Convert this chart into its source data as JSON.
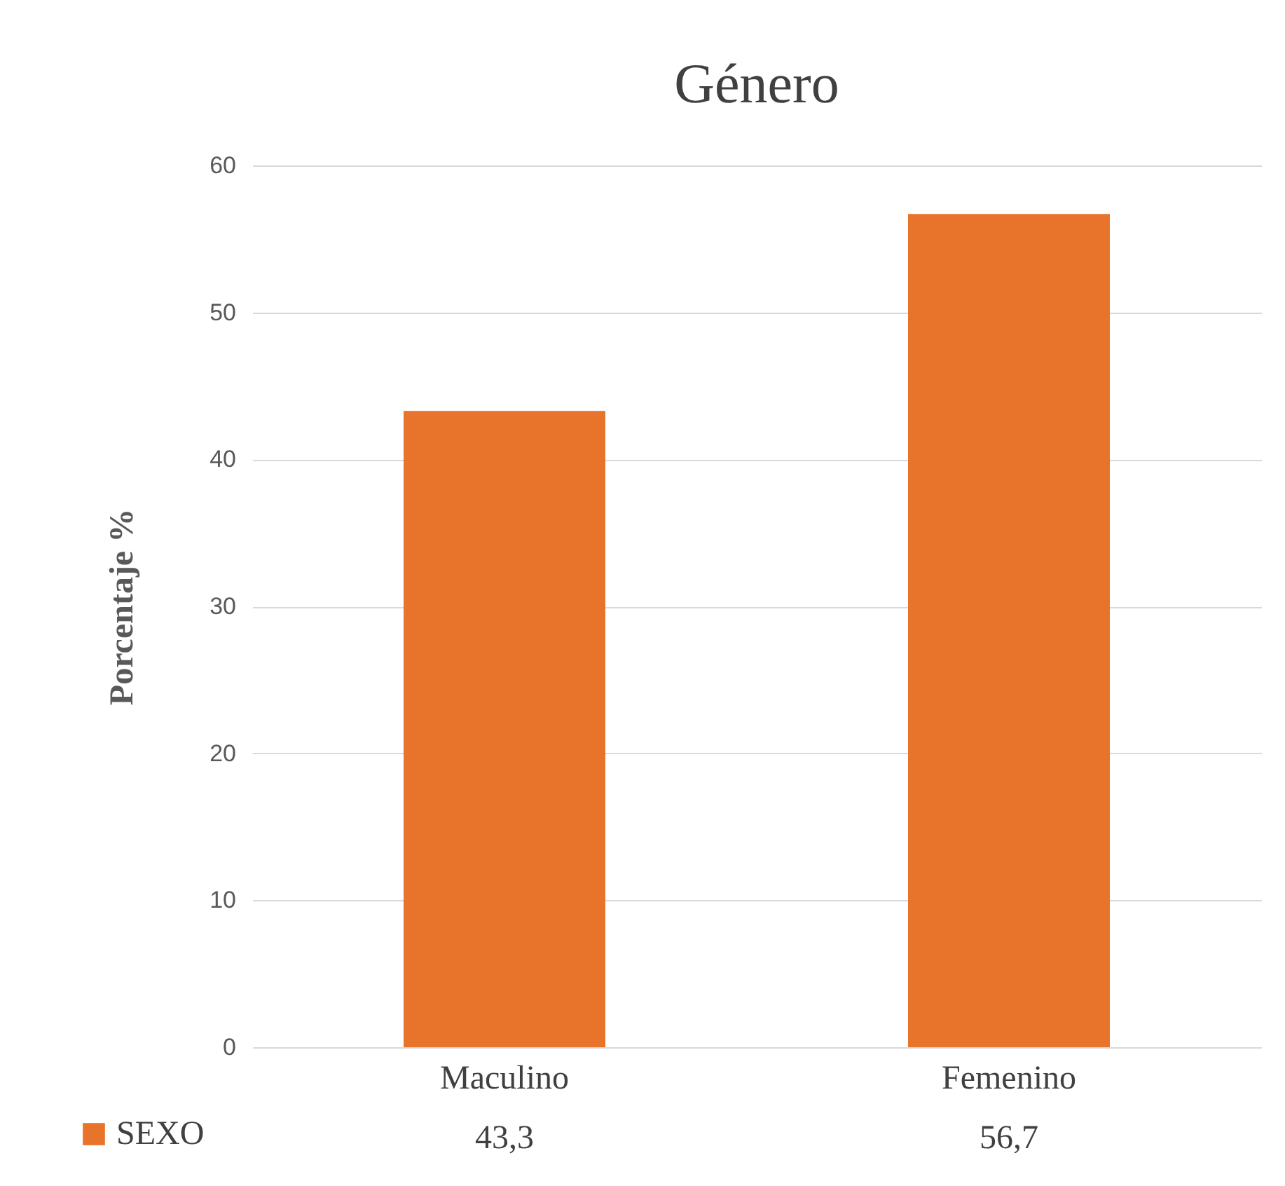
{
  "chart_data": {
    "type": "bar",
    "title": "Género",
    "ylabel": "Porcentaje %",
    "categories": [
      "Maculino",
      "Femenino"
    ],
    "series": [
      {
        "name": "SEXO",
        "color": "#e8732a",
        "values": [
          43.3,
          56.7
        ],
        "value_labels": [
          "43,3",
          "56,7"
        ]
      }
    ],
    "ylim": [
      0,
      60
    ],
    "yticks": [
      0,
      10,
      20,
      30,
      40,
      50,
      60
    ],
    "grid": "y",
    "legend": "bottom left"
  }
}
